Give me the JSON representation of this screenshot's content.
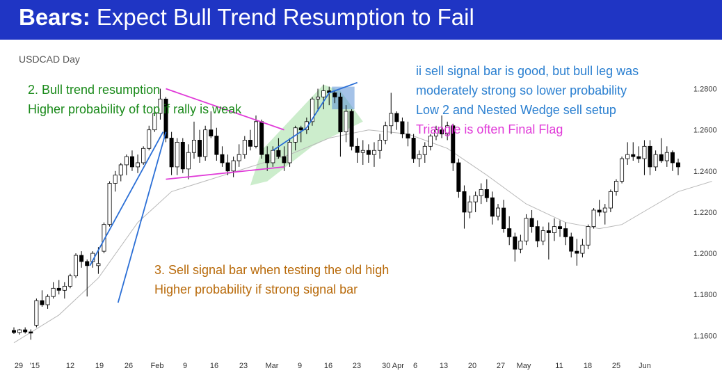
{
  "slide": {
    "title_bold": "Bears:",
    "title_rest": " Expect Bull Trend Resumption to Fail",
    "symbol": "USDCAD Day"
  },
  "annotations": {
    "green": [
      "2. Bull trend resumption",
      "Higher probability of top if rally is weak"
    ],
    "blue": [
      "ii sell signal bar is good, but bull leg was",
      "moderately strong so lower probability",
      "Low 2 and Nested Wedge sell setup"
    ],
    "magenta": [
      "Triangle is often Final Flag"
    ],
    "orange": [
      "3. Sell signal bar when testing the old high",
      "Higher probability if strong signal bar"
    ]
  },
  "colors": {
    "title_bg": "#1f35c4",
    "green": "#1a8a1a",
    "blue": "#2a7fd0",
    "magenta": "#e03ad8",
    "orange": "#b86a0a",
    "trendline": "#2b6fd6",
    "wedge_fill": "#8fd88f",
    "ma": "#b8b8b8"
  },
  "chart_data": {
    "type": "candlestick",
    "x_tick_labels": [
      "29",
      "'15",
      "12",
      "19",
      "26",
      "Feb",
      "9",
      "16",
      "23",
      "Mar",
      "9",
      "16",
      "23",
      "30 Apr",
      "6",
      "13",
      "20",
      "27",
      "May",
      "11",
      "18",
      "25",
      "Jun"
    ],
    "y_ticks": [
      "1.1600",
      "1.1800",
      "1.2000",
      "1.2200",
      "1.2400",
      "1.2600",
      "1.2800"
    ],
    "ylim": [
      1.152,
      1.291
    ],
    "grid": false,
    "candles": [
      [
        1.1625,
        1.164,
        1.1608,
        1.1615
      ],
      [
        1.1615,
        1.1632,
        1.1605,
        1.1628
      ],
      [
        1.1628,
        1.164,
        1.161,
        1.1618
      ],
      [
        1.1618,
        1.163,
        1.158,
        1.1612
      ],
      [
        1.165,
        1.178,
        1.164,
        1.177
      ],
      [
        1.177,
        1.182,
        1.174,
        1.175
      ],
      [
        1.175,
        1.18,
        1.173,
        1.179
      ],
      [
        1.179,
        1.186,
        1.178,
        1.183
      ],
      [
        1.183,
        1.187,
        1.18,
        1.182
      ],
      [
        1.182,
        1.186,
        1.178,
        1.184
      ],
      [
        1.184,
        1.19,
        1.183,
        1.189
      ],
      [
        1.189,
        1.2,
        1.188,
        1.199
      ],
      [
        1.199,
        1.201,
        1.193,
        1.196
      ],
      [
        1.196,
        1.197,
        1.179,
        1.194
      ],
      [
        1.196,
        1.201,
        1.193,
        1.2
      ],
      [
        1.194,
        1.203,
        1.19,
        1.195
      ],
      [
        1.201,
        1.215,
        1.2,
        1.214
      ],
      [
        1.214,
        1.235,
        1.213,
        1.234
      ],
      [
        1.234,
        1.24,
        1.23,
        1.238
      ],
      [
        1.238,
        1.244,
        1.235,
        1.243
      ],
      [
        1.243,
        1.248,
        1.238,
        1.247
      ],
      [
        1.247,
        1.25,
        1.24,
        1.242
      ],
      [
        1.242,
        1.248,
        1.239,
        1.244
      ],
      [
        1.244,
        1.252,
        1.243,
        1.251
      ],
      [
        1.251,
        1.262,
        1.25,
        1.26
      ],
      [
        1.26,
        1.27,
        1.259,
        1.268
      ],
      [
        1.268,
        1.28,
        1.265,
        1.275
      ],
      [
        1.275,
        1.276,
        1.254,
        1.256
      ],
      [
        1.256,
        1.259,
        1.238,
        1.242
      ],
      [
        1.242,
        1.256,
        1.238,
        1.254
      ],
      [
        1.254,
        1.256,
        1.239,
        1.241
      ],
      [
        1.241,
        1.253,
        1.236,
        1.249
      ],
      [
        1.249,
        1.264,
        1.246,
        1.255
      ],
      [
        1.255,
        1.26,
        1.244,
        1.247
      ],
      [
        1.247,
        1.262,
        1.245,
        1.26
      ],
      [
        1.26,
        1.269,
        1.256,
        1.257
      ],
      [
        1.257,
        1.261,
        1.245,
        1.248
      ],
      [
        1.248,
        1.252,
        1.242,
        1.244
      ],
      [
        1.244,
        1.248,
        1.238,
        1.24
      ],
      [
        1.24,
        1.247,
        1.237,
        1.245
      ],
      [
        1.245,
        1.253,
        1.242,
        1.248
      ],
      [
        1.248,
        1.257,
        1.246,
        1.255
      ],
      [
        1.255,
        1.26,
        1.25,
        1.252
      ],
      [
        1.252,
        1.267,
        1.251,
        1.264
      ],
      [
        1.264,
        1.265,
        1.246,
        1.248
      ],
      [
        1.248,
        1.252,
        1.24,
        1.244
      ],
      [
        1.244,
        1.252,
        1.242,
        1.25
      ],
      [
        1.25,
        1.256,
        1.246,
        1.247
      ],
      [
        1.247,
        1.252,
        1.24,
        1.244
      ],
      [
        1.244,
        1.256,
        1.242,
        1.254
      ],
      [
        1.254,
        1.262,
        1.25,
        1.261
      ],
      [
        1.261,
        1.262,
        1.254,
        1.26
      ],
      [
        1.26,
        1.266,
        1.258,
        1.264
      ],
      [
        1.264,
        1.276,
        1.262,
        1.275
      ],
      [
        1.275,
        1.28,
        1.269,
        1.276
      ],
      [
        1.276,
        1.282,
        1.27,
        1.279
      ],
      [
        1.279,
        1.281,
        1.272,
        1.278
      ],
      [
        1.278,
        1.279,
        1.273,
        1.276
      ],
      [
        1.276,
        1.278,
        1.247,
        1.259
      ],
      [
        1.259,
        1.272,
        1.254,
        1.269
      ],
      [
        1.269,
        1.27,
        1.25,
        1.252
      ],
      [
        1.252,
        1.256,
        1.244,
        1.249
      ],
      [
        1.249,
        1.255,
        1.243,
        1.25
      ],
      [
        1.25,
        1.253,
        1.244,
        1.248
      ],
      [
        1.248,
        1.254,
        1.242,
        1.25
      ],
      [
        1.25,
        1.258,
        1.246,
        1.255
      ],
      [
        1.255,
        1.264,
        1.253,
        1.262
      ],
      [
        1.262,
        1.278,
        1.258,
        1.268
      ],
      [
        1.268,
        1.269,
        1.26,
        1.264
      ],
      [
        1.264,
        1.266,
        1.256,
        1.258
      ],
      [
        1.258,
        1.264,
        1.252,
        1.256
      ],
      [
        1.256,
        1.258,
        1.244,
        1.246
      ],
      [
        1.246,
        1.25,
        1.242,
        1.248
      ],
      [
        1.248,
        1.254,
        1.244,
        1.252
      ],
      [
        1.252,
        1.258,
        1.25,
        1.257
      ],
      [
        1.257,
        1.262,
        1.255,
        1.26
      ],
      [
        1.26,
        1.267,
        1.256,
        1.258
      ],
      [
        1.258,
        1.264,
        1.255,
        1.262
      ],
      [
        1.262,
        1.263,
        1.24,
        1.244
      ],
      [
        1.244,
        1.246,
        1.227,
        1.23
      ],
      [
        1.23,
        1.233,
        1.212,
        1.22
      ],
      [
        1.22,
        1.228,
        1.217,
        1.225
      ],
      [
        1.225,
        1.23,
        1.22,
        1.228
      ],
      [
        1.228,
        1.234,
        1.224,
        1.231
      ],
      [
        1.231,
        1.236,
        1.225,
        1.227
      ],
      [
        1.227,
        1.23,
        1.214,
        1.218
      ],
      [
        1.218,
        1.224,
        1.216,
        1.222
      ],
      [
        1.222,
        1.226,
        1.21,
        1.212
      ],
      [
        1.212,
        1.218,
        1.204,
        1.208
      ],
      [
        1.208,
        1.21,
        1.196,
        1.202
      ],
      [
        1.202,
        1.209,
        1.2,
        1.206
      ],
      [
        1.206,
        1.219,
        1.204,
        1.217
      ],
      [
        1.217,
        1.221,
        1.21,
        1.213
      ],
      [
        1.213,
        1.216,
        1.203,
        1.206
      ],
      [
        1.206,
        1.213,
        1.204,
        1.211
      ],
      [
        1.211,
        1.215,
        1.197,
        1.21
      ],
      [
        1.21,
        1.217,
        1.206,
        1.213
      ],
      [
        1.213,
        1.216,
        1.208,
        1.212
      ],
      [
        1.212,
        1.215,
        1.204,
        1.208
      ],
      [
        1.208,
        1.21,
        1.198,
        1.201
      ],
      [
        1.201,
        1.207,
        1.194,
        1.2
      ],
      [
        1.2,
        1.207,
        1.198,
        1.204
      ],
      [
        1.204,
        1.214,
        1.202,
        1.213
      ],
      [
        1.213,
        1.222,
        1.212,
        1.221
      ],
      [
        1.221,
        1.226,
        1.218,
        1.22
      ],
      [
        1.22,
        1.224,
        1.214,
        1.222
      ],
      [
        1.222,
        1.231,
        1.22,
        1.23
      ],
      [
        1.23,
        1.236,
        1.228,
        1.235
      ],
      [
        1.235,
        1.247,
        1.234,
        1.246
      ],
      [
        1.246,
        1.254,
        1.243,
        1.248
      ],
      [
        1.248,
        1.254,
        1.245,
        1.247
      ],
      [
        1.247,
        1.252,
        1.244,
        1.246
      ],
      [
        1.246,
        1.255,
        1.238,
        1.252
      ],
      [
        1.252,
        1.255,
        1.238,
        1.242
      ],
      [
        1.242,
        1.25,
        1.24,
        1.248
      ],
      [
        1.248,
        1.256,
        1.244,
        1.245
      ],
      [
        1.245,
        1.252,
        1.242,
        1.249
      ],
      [
        1.249,
        1.25,
        1.24,
        1.244
      ],
      [
        1.244,
        1.246,
        1.238,
        1.242
      ]
    ],
    "moving_average": [
      [
        0,
        1.1565
      ],
      [
        8,
        1.17
      ],
      [
        15,
        1.188
      ],
      [
        22,
        1.215
      ],
      [
        28,
        1.23
      ],
      [
        35,
        1.236
      ],
      [
        42,
        1.242
      ],
      [
        49,
        1.248
      ],
      [
        56,
        1.256
      ],
      [
        63,
        1.26
      ],
      [
        70,
        1.258
      ],
      [
        77,
        1.251
      ],
      [
        84,
        1.238
      ],
      [
        91,
        1.224
      ],
      [
        98,
        1.215
      ],
      [
        104,
        1.212
      ],
      [
        108,
        1.214
      ],
      [
        113,
        1.222
      ],
      [
        118,
        1.23
      ],
      [
        124,
        1.235
      ]
    ],
    "overlays": {
      "trendlines": [
        [
          [
            18.5,
            1.176
          ],
          [
            27,
            1.259
          ]
        ],
        [
          [
            13.5,
            1.194
          ],
          [
            26.5,
            1.259
          ]
        ]
      ],
      "triangle": [
        [
          [
            27,
            1.28
          ],
          [
            48,
            1.26
          ]
        ],
        [
          [
            27,
            1.236
          ],
          [
            48,
            1.242
          ]
        ]
      ],
      "wedge_polygon": [
        [
          44,
          1.25
        ],
        [
          55,
          1.282
        ],
        [
          58,
          1.279
        ],
        [
          62,
          1.264
        ],
        [
          53,
          1.252
        ],
        [
          45,
          1.235
        ],
        [
          42,
          1.233
        ]
      ],
      "blue_box": [
        [
          56.5,
          1.281
        ],
        [
          60.5,
          1.27
        ]
      ],
      "low2_line": [
        [
          46,
          1.25
        ],
        [
          52,
          1.261
        ],
        [
          56,
          1.278
        ],
        [
          61,
          1.283
        ]
      ]
    }
  }
}
